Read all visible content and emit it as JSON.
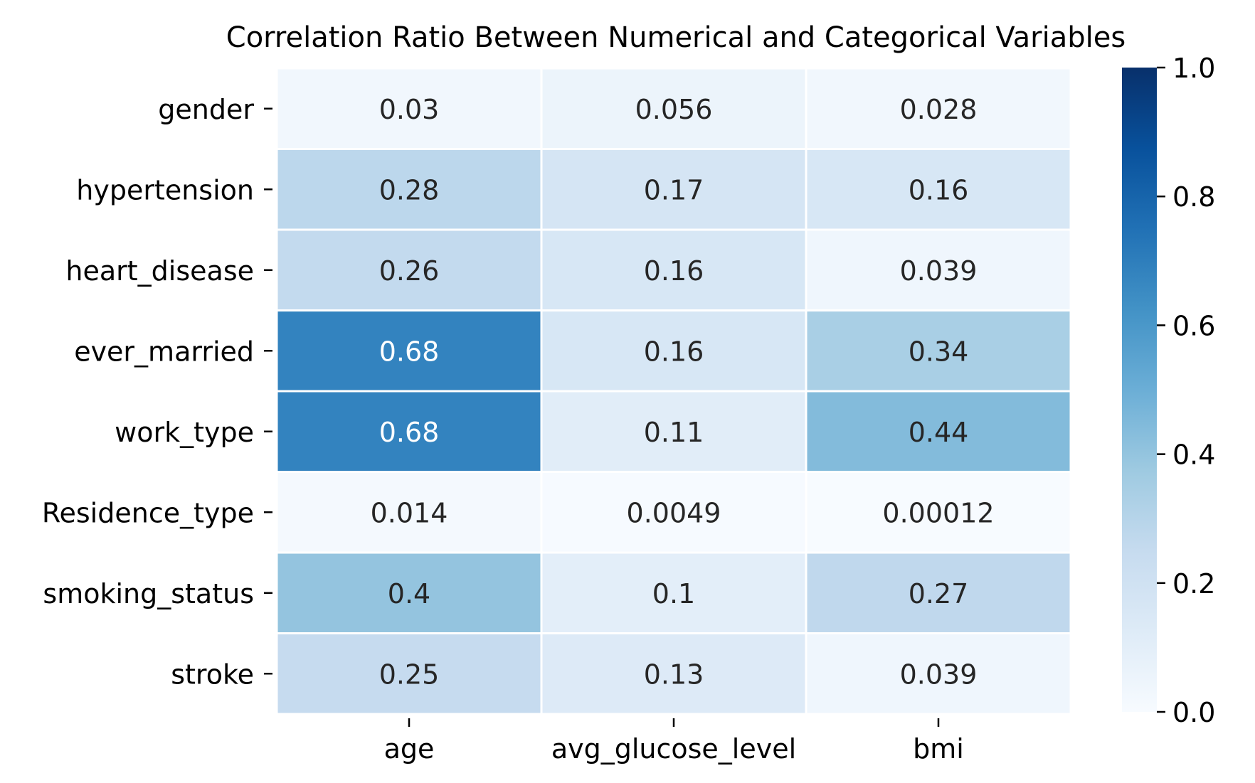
{
  "chart_data": {
    "type": "heatmap",
    "title": "Correlation Ratio Between Numerical and Categorical Variables",
    "xlabel": "",
    "ylabel": "",
    "x_categories": [
      "age",
      "avg_glucose_level",
      "bmi"
    ],
    "y_categories": [
      "gender",
      "hypertension",
      "heart_disease",
      "ever_married",
      "work_type",
      "Residence_type",
      "smoking_status",
      "stroke"
    ],
    "values": [
      [
        0.03,
        0.056,
        0.028
      ],
      [
        0.28,
        0.17,
        0.16
      ],
      [
        0.26,
        0.16,
        0.039
      ],
      [
        0.68,
        0.16,
        0.34
      ],
      [
        0.68,
        0.11,
        0.44
      ],
      [
        0.014,
        0.0049,
        0.00012
      ],
      [
        0.4,
        0.1,
        0.27
      ],
      [
        0.25,
        0.13,
        0.039
      ]
    ],
    "value_labels": [
      [
        "0.03",
        "0.056",
        "0.028"
      ],
      [
        "0.28",
        "0.17",
        "0.16"
      ],
      [
        "0.26",
        "0.16",
        "0.039"
      ],
      [
        "0.68",
        "0.16",
        "0.34"
      ],
      [
        "0.68",
        "0.11",
        "0.44"
      ],
      [
        "0.014",
        "0.0049",
        "0.00012"
      ],
      [
        "0.4",
        "0.1",
        "0.27"
      ],
      [
        "0.25",
        "0.13",
        "0.039"
      ]
    ],
    "colorbar": {
      "vmin": 0.0,
      "vmax": 1.0,
      "ticks": [
        0.0,
        0.2,
        0.4,
        0.6,
        0.8,
        1.0
      ],
      "tick_labels": [
        "0.0",
        "0.2",
        "0.4",
        "0.6",
        "0.8",
        "1.0"
      ],
      "colormap": "Blues",
      "colors": [
        "#f7fbff",
        "#deebf7",
        "#c6dbef",
        "#9ecae1",
        "#6baed6",
        "#4292c6",
        "#2171b5",
        "#08519c",
        "#08306b"
      ]
    },
    "grid": false,
    "legend": "colorbar-right"
  }
}
